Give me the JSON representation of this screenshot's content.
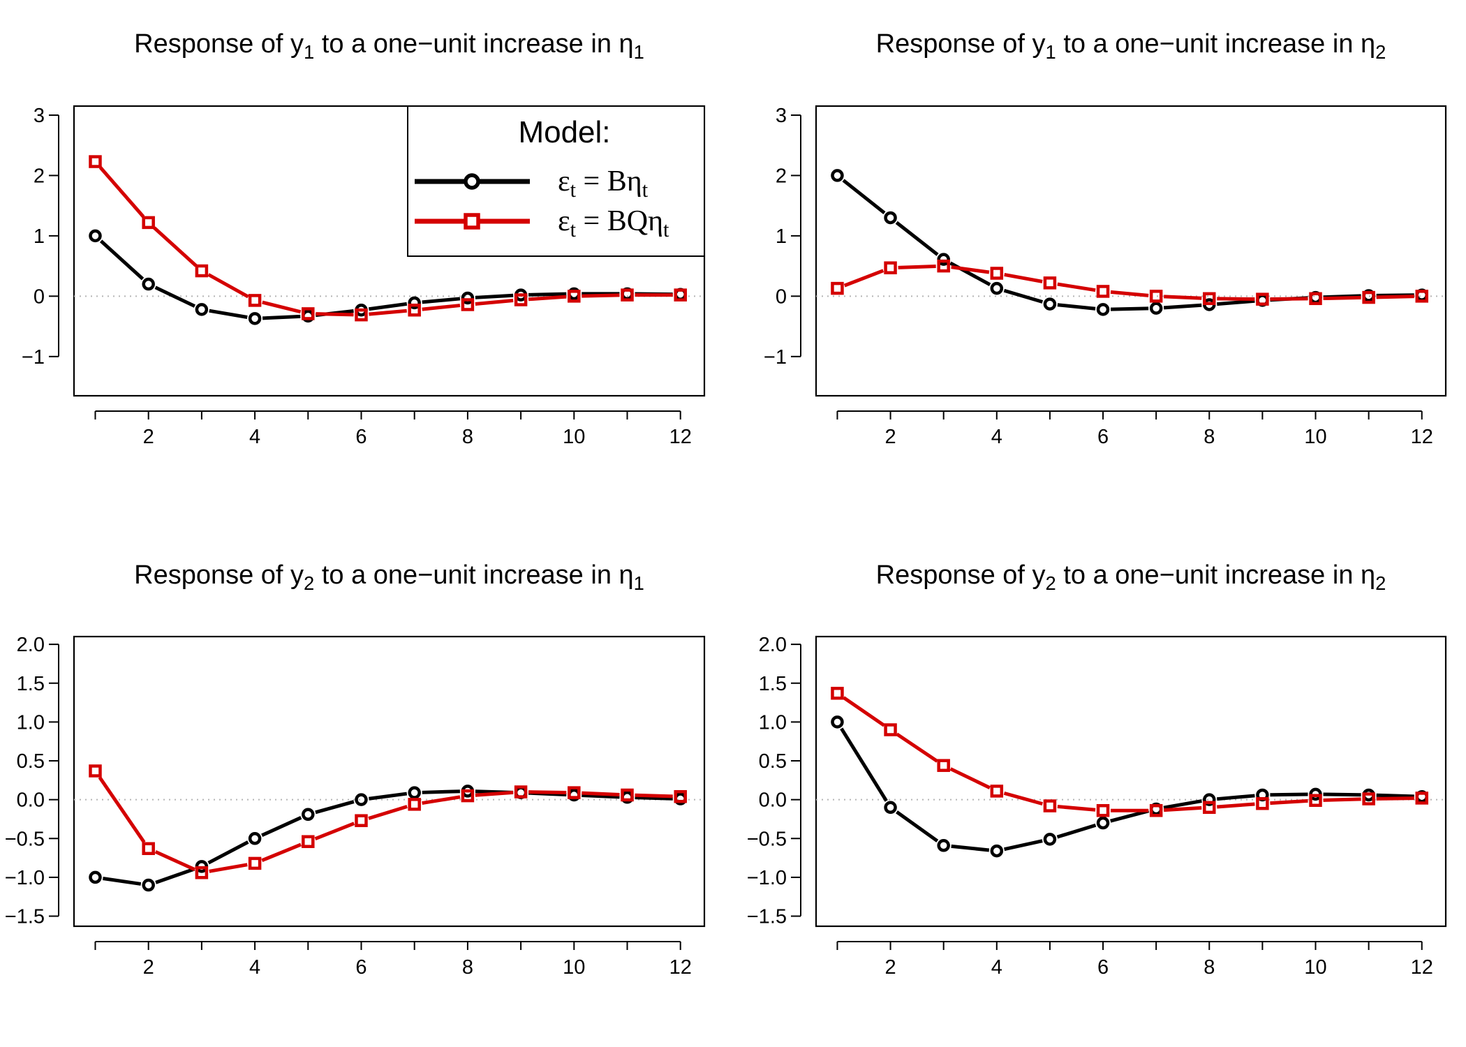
{
  "legend": {
    "title": "Model:",
    "entries": [
      {
        "label": "εt = Bηt",
        "color": "#000000",
        "marker": "circle"
      },
      {
        "label": "εt = BQηt",
        "color": "#d40000",
        "marker": "square"
      }
    ]
  },
  "chart_data": [
    {
      "type": "line",
      "title": "Response of y1 to a one−unit increase in η1",
      "x": [
        1,
        2,
        3,
        4,
        5,
        6,
        7,
        8,
        9,
        10,
        11,
        12
      ],
      "xticks": [
        2,
        4,
        6,
        8,
        10,
        12
      ],
      "xlim": [
        0.6,
        12.45
      ],
      "ylim": [
        -1.65,
        3.15
      ],
      "yticks": [
        -1,
        0,
        1,
        2,
        3
      ],
      "ytick_labels": [
        "−1",
        "0",
        "1",
        "2",
        "3"
      ],
      "reference_line": 0,
      "legend": "top-right",
      "series": [
        {
          "name": "εt = Bηt",
          "color": "#000000",
          "marker": "circle",
          "values": [
            1.0,
            0.2,
            -0.22,
            -0.37,
            -0.33,
            -0.23,
            -0.11,
            -0.03,
            0.02,
            0.04,
            0.04,
            0.03
          ]
        },
        {
          "name": "εt = BQηt",
          "color": "#d40000",
          "marker": "square",
          "values": [
            2.23,
            1.22,
            0.42,
            -0.07,
            -0.29,
            -0.31,
            -0.23,
            -0.14,
            -0.06,
            0.0,
            0.02,
            0.02
          ]
        }
      ]
    },
    {
      "type": "line",
      "title": "Response of y1 to a one−unit increase in η2",
      "x": [
        1,
        2,
        3,
        4,
        5,
        6,
        7,
        8,
        9,
        10,
        11,
        12
      ],
      "xticks": [
        2,
        4,
        6,
        8,
        10,
        12
      ],
      "xlim": [
        0.6,
        12.45
      ],
      "ylim": [
        -1.65,
        3.15
      ],
      "yticks": [
        -1,
        0,
        1,
        2,
        3
      ],
      "ytick_labels": [
        "−1",
        "0",
        "1",
        "2",
        "3"
      ],
      "reference_line": 0,
      "series": [
        {
          "name": "εt = Bηt",
          "color": "#000000",
          "marker": "circle",
          "values": [
            2.0,
            1.3,
            0.61,
            0.13,
            -0.13,
            -0.22,
            -0.2,
            -0.14,
            -0.07,
            -0.02,
            0.01,
            0.02
          ]
        },
        {
          "name": "εt = BQηt",
          "color": "#d40000",
          "marker": "square",
          "values": [
            0.13,
            0.47,
            0.5,
            0.38,
            0.22,
            0.08,
            0.0,
            -0.04,
            -0.05,
            -0.04,
            -0.02,
            0.0
          ]
        }
      ]
    },
    {
      "type": "line",
      "title": "Response of y2 to a one−unit increase in η1",
      "x": [
        1,
        2,
        3,
        4,
        5,
        6,
        7,
        8,
        9,
        10,
        11,
        12
      ],
      "xticks": [
        2,
        4,
        6,
        8,
        10,
        12
      ],
      "xlim": [
        0.6,
        12.45
      ],
      "ylim": [
        -1.63,
        2.1
      ],
      "yticks": [
        -1.5,
        -1.0,
        -0.5,
        0.0,
        0.5,
        1.0,
        1.5,
        2.0
      ],
      "ytick_labels": [
        "−1.5",
        "−1.0",
        "−0.5",
        "0.0",
        "0.5",
        "1.0",
        "1.5",
        "2.0"
      ],
      "reference_line": 0,
      "series": [
        {
          "name": "εt = Bηt",
          "color": "#000000",
          "marker": "circle",
          "values": [
            -1.0,
            -1.1,
            -0.86,
            -0.5,
            -0.19,
            0.0,
            0.09,
            0.11,
            0.09,
            0.06,
            0.03,
            0.01
          ]
        },
        {
          "name": "εt = BQηt",
          "color": "#d40000",
          "marker": "square",
          "values": [
            0.37,
            -0.63,
            -0.94,
            -0.82,
            -0.54,
            -0.27,
            -0.06,
            0.05,
            0.1,
            0.09,
            0.06,
            0.04
          ]
        }
      ]
    },
    {
      "type": "line",
      "title": "Response of y2 to a one−unit increase in η2",
      "x": [
        1,
        2,
        3,
        4,
        5,
        6,
        7,
        8,
        9,
        10,
        11,
        12
      ],
      "xticks": [
        2,
        4,
        6,
        8,
        10,
        12
      ],
      "xlim": [
        0.6,
        12.45
      ],
      "ylim": [
        -1.63,
        2.1
      ],
      "yticks": [
        -1.5,
        -1.0,
        -0.5,
        0.0,
        0.5,
        1.0,
        1.5,
        2.0
      ],
      "ytick_labels": [
        "−1.5",
        "−1.0",
        "−0.5",
        "0.0",
        "0.5",
        "1.0",
        "1.5",
        "2.0"
      ],
      "reference_line": 0,
      "series": [
        {
          "name": "εt = Bηt",
          "color": "#000000",
          "marker": "circle",
          "values": [
            1.0,
            -0.1,
            -0.59,
            -0.66,
            -0.51,
            -0.3,
            -0.12,
            0.0,
            0.06,
            0.07,
            0.06,
            0.04
          ]
        },
        {
          "name": "εt = BQηt",
          "color": "#d40000",
          "marker": "square",
          "values": [
            1.37,
            0.9,
            0.44,
            0.11,
            -0.08,
            -0.14,
            -0.14,
            -0.1,
            -0.05,
            -0.01,
            0.01,
            0.02
          ]
        }
      ]
    }
  ]
}
